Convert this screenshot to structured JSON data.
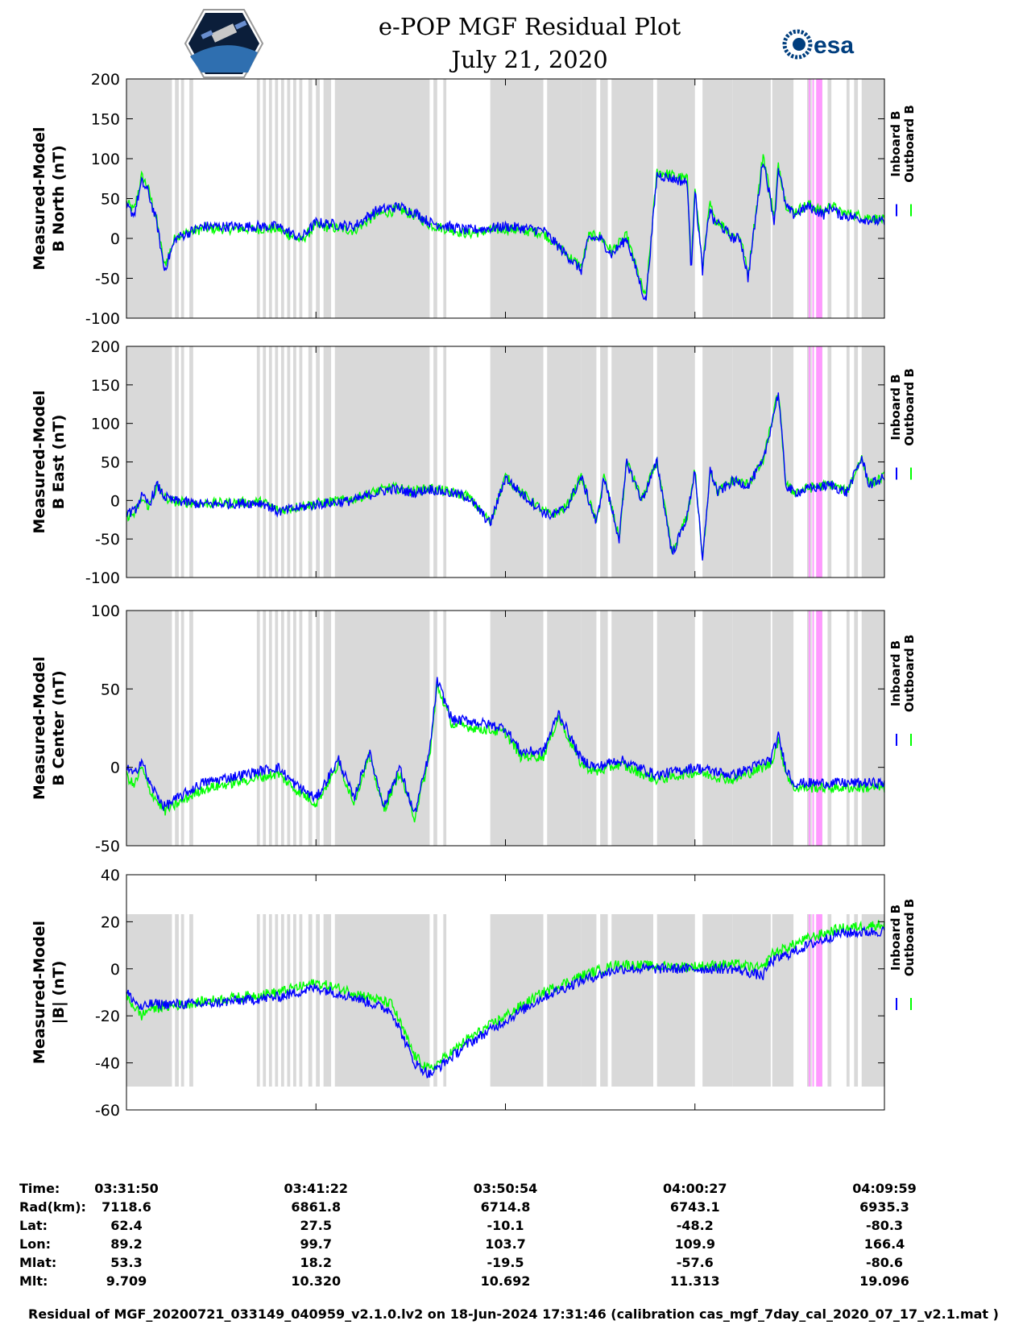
{
  "title": {
    "line1": "e-POP MGF Residual Plot",
    "line2": "July 21, 2020"
  },
  "logos": {
    "left": "cassiope-mission-logo",
    "right": "esa-logo",
    "right_text": "esa"
  },
  "colors": {
    "inboard": "#0000ff",
    "outboard": "#00ff00",
    "shade": "#d9d9d9",
    "highlight": "#ff99ff"
  },
  "chart_data": [
    {
      "type": "line",
      "id": "north",
      "ylabel": [
        "Measured-Model",
        "B North (nT)"
      ],
      "ylim": [
        -100,
        200
      ],
      "yticks": [
        -100,
        -50,
        0,
        50,
        100,
        150,
        200
      ],
      "legend": [
        "Inboard B",
        "Outboard B"
      ],
      "series": [
        {
          "name": "Inboard B",
          "x": [
            0.0,
            0.01,
            0.02,
            0.028,
            0.04,
            0.05,
            0.065,
            0.1,
            0.2,
            0.23,
            0.25,
            0.3,
            0.33,
            0.36,
            0.385,
            0.4,
            0.45,
            0.5,
            0.55,
            0.6,
            0.61,
            0.625,
            0.64,
            0.66,
            0.685,
            0.7,
            0.74,
            0.745,
            0.75,
            0.76,
            0.77,
            0.775,
            0.78,
            0.8,
            0.81,
            0.82,
            0.84,
            0.855,
            0.86,
            0.87,
            0.88,
            0.9,
            0.92,
            0.93,
            0.94,
            1.0
          ],
          "y": [
            40,
            30,
            70,
            60,
            20,
            -40,
            0,
            15,
            15,
            0,
            20,
            15,
            35,
            40,
            30,
            20,
            10,
            15,
            10,
            -40,
            0,
            0,
            -20,
            0,
            -80,
            80,
            70,
            -40,
            60,
            -40,
            40,
            20,
            20,
            0,
            0,
            -50,
            100,
            20,
            90,
            40,
            30,
            40,
            30,
            40,
            30,
            20
          ]
        },
        {
          "name": "Outboard B",
          "x": [
            0.0,
            0.01,
            0.02,
            0.028,
            0.04,
            0.05,
            0.065,
            0.1,
            0.2,
            0.23,
            0.25,
            0.3,
            0.33,
            0.36,
            0.385,
            0.4,
            0.45,
            0.5,
            0.55,
            0.6,
            0.61,
            0.625,
            0.64,
            0.66,
            0.685,
            0.7,
            0.74,
            0.745,
            0.75,
            0.76,
            0.77,
            0.775,
            0.78,
            0.8,
            0.81,
            0.82,
            0.84,
            0.855,
            0.86,
            0.87,
            0.88,
            0.9,
            0.92,
            0.93,
            0.94,
            1.0
          ],
          "y": [
            45,
            35,
            78,
            65,
            22,
            -35,
            3,
            12,
            12,
            -3,
            16,
            10,
            30,
            36,
            27,
            17,
            6,
            12,
            7,
            -36,
            3,
            3,
            -16,
            3,
            -76,
            84,
            74,
            -36,
            64,
            -36,
            44,
            24,
            23,
            3,
            3,
            -46,
            106,
            24,
            95,
            43,
            33,
            43,
            33,
            43,
            33,
            23
          ]
        }
      ]
    },
    {
      "type": "line",
      "id": "east",
      "ylabel": [
        "Measured-Model",
        "B East (nT)"
      ],
      "ylim": [
        -100,
        200
      ],
      "yticks": [
        -100,
        -50,
        0,
        50,
        100,
        150,
        200
      ],
      "legend": [
        "Inboard B",
        "Outboard B"
      ],
      "series": [
        {
          "name": "Inboard B",
          "x": [
            0.0,
            0.01,
            0.02,
            0.03,
            0.04,
            0.05,
            0.06,
            0.1,
            0.18,
            0.2,
            0.25,
            0.3,
            0.33,
            0.35,
            0.38,
            0.4,
            0.45,
            0.48,
            0.5,
            0.52,
            0.55,
            0.56,
            0.58,
            0.6,
            0.62,
            0.63,
            0.65,
            0.66,
            0.68,
            0.7,
            0.72,
            0.74,
            0.75,
            0.76,
            0.77,
            0.78,
            0.8,
            0.82,
            0.84,
            0.86,
            0.87,
            0.88,
            0.9,
            0.93,
            0.95,
            0.97,
            0.98,
            1.0
          ],
          "y": [
            -15,
            -15,
            5,
            -5,
            20,
            5,
            0,
            -5,
            -3,
            -15,
            -5,
            0,
            10,
            15,
            10,
            15,
            5,
            -30,
            30,
            10,
            -15,
            -20,
            -10,
            30,
            -30,
            30,
            -50,
            50,
            0,
            50,
            -70,
            -20,
            40,
            -80,
            40,
            10,
            25,
            20,
            50,
            140,
            20,
            10,
            15,
            20,
            10,
            55,
            20,
            30
          ]
        },
        {
          "name": "Outboard B",
          "x": [
            0.0,
            0.01,
            0.02,
            0.03,
            0.04,
            0.05,
            0.06,
            0.1,
            0.18,
            0.2,
            0.25,
            0.3,
            0.33,
            0.35,
            0.38,
            0.4,
            0.45,
            0.48,
            0.5,
            0.52,
            0.55,
            0.56,
            0.58,
            0.6,
            0.62,
            0.63,
            0.65,
            0.66,
            0.68,
            0.7,
            0.72,
            0.74,
            0.75,
            0.76,
            0.77,
            0.78,
            0.8,
            0.82,
            0.84,
            0.86,
            0.87,
            0.88,
            0.9,
            0.93,
            0.95,
            0.97,
            0.98,
            1.0
          ],
          "y": [
            -20,
            -18,
            2,
            -8,
            18,
            4,
            -1,
            -4,
            -2,
            -13,
            -4,
            2,
            12,
            17,
            12,
            16,
            6,
            -28,
            31,
            11,
            -14,
            -19,
            -9,
            31,
            -29,
            31,
            -49,
            51,
            1,
            51,
            -69,
            -19,
            41,
            -79,
            41,
            11,
            26,
            21,
            51,
            141,
            21,
            11,
            16,
            21,
            11,
            56,
            21,
            31
          ]
        }
      ]
    },
    {
      "type": "line",
      "id": "center",
      "ylabel": [
        "Measured-Model",
        "B Center (nT)"
      ],
      "ylim": [
        -50,
        100
      ],
      "yticks": [
        -50,
        0,
        50,
        100
      ],
      "legend": [
        "Inboard B",
        "Outboard B"
      ],
      "series": [
        {
          "name": "Inboard B",
          "x": [
            0.0,
            0.01,
            0.02,
            0.03,
            0.05,
            0.1,
            0.15,
            0.2,
            0.22,
            0.25,
            0.28,
            0.3,
            0.32,
            0.34,
            0.36,
            0.38,
            0.4,
            0.41,
            0.43,
            0.45,
            0.5,
            0.52,
            0.55,
            0.57,
            0.6,
            0.62,
            0.65,
            0.7,
            0.75,
            0.8,
            0.85,
            0.86,
            0.87,
            0.88,
            0.9,
            0.95,
            1.0
          ],
          "y": [
            0,
            -5,
            5,
            -10,
            -25,
            -10,
            -5,
            0,
            -10,
            -20,
            5,
            -20,
            10,
            -25,
            0,
            -30,
            10,
            55,
            30,
            30,
            25,
            10,
            10,
            35,
            5,
            0,
            5,
            -5,
            0,
            -5,
            5,
            20,
            0,
            -10,
            -10,
            -10,
            -10
          ]
        },
        {
          "name": "Outboard B",
          "x": [
            0.0,
            0.01,
            0.02,
            0.03,
            0.05,
            0.1,
            0.15,
            0.2,
            0.22,
            0.25,
            0.28,
            0.3,
            0.32,
            0.34,
            0.36,
            0.38,
            0.4,
            0.41,
            0.43,
            0.45,
            0.5,
            0.52,
            0.55,
            0.57,
            0.6,
            0.62,
            0.65,
            0.7,
            0.75,
            0.8,
            0.85,
            0.86,
            0.87,
            0.88,
            0.9,
            0.95,
            1.0
          ],
          "y": [
            -5,
            -12,
            0,
            -14,
            -28,
            -14,
            -9,
            -4,
            -13,
            -23,
            2,
            -22,
            7,
            -27,
            -3,
            -32,
            7,
            52,
            27,
            26,
            22,
            7,
            7,
            32,
            2,
            -3,
            2,
            -8,
            -3,
            -8,
            2,
            17,
            -3,
            -13,
            -13,
            -13,
            -13
          ]
        }
      ]
    },
    {
      "type": "line",
      "id": "magnitude",
      "ylabel": [
        "Measured-Model",
        "|B| (nT)"
      ],
      "ylim": [
        -60,
        40
      ],
      "yticks": [
        -60,
        -40,
        -20,
        0,
        20,
        40
      ],
      "legend": [
        "Inboard B",
        "Outboard B"
      ],
      "series": [
        {
          "name": "Inboard B",
          "x": [
            0.0,
            0.02,
            0.03,
            0.1,
            0.2,
            0.25,
            0.3,
            0.35,
            0.38,
            0.4,
            0.45,
            0.5,
            0.55,
            0.6,
            0.65,
            0.7,
            0.75,
            0.8,
            0.84,
            0.85,
            0.9,
            0.94,
            1.0
          ],
          "y": [
            -10,
            -17,
            -15,
            -15,
            -12,
            -8,
            -12,
            -18,
            -40,
            -45,
            -32,
            -22,
            -12,
            -5,
            0,
            0,
            0,
            0,
            -3,
            3,
            10,
            15,
            16
          ]
        },
        {
          "name": "Outboard B",
          "x": [
            0.0,
            0.02,
            0.03,
            0.1,
            0.2,
            0.25,
            0.3,
            0.35,
            0.38,
            0.4,
            0.45,
            0.5,
            0.55,
            0.6,
            0.65,
            0.7,
            0.75,
            0.8,
            0.84,
            0.85,
            0.9,
            0.94,
            1.0
          ],
          "y": [
            -12,
            -20,
            -17,
            -14,
            -10,
            -6,
            -10,
            -15,
            -37,
            -43,
            -30,
            -20,
            -10,
            -3,
            2,
            1,
            1,
            2,
            0,
            6,
            13,
            17,
            19
          ]
        }
      ]
    }
  ],
  "info_table": {
    "labels": [
      "Time:",
      "Rad(km):",
      "Lat:",
      "Lon:",
      "Mlat:",
      "Mlt:"
    ],
    "columns": [
      [
        "03:31:50",
        "7118.6",
        "62.4",
        "89.2",
        "53.3",
        "9.709"
      ],
      [
        "03:41:22",
        "6861.8",
        "27.5",
        "99.7",
        "18.2",
        "10.320"
      ],
      [
        "03:50:54",
        "6714.8",
        "-10.1",
        "103.7",
        "-19.5",
        "10.692"
      ],
      [
        "04:00:27",
        "6743.1",
        "-48.2",
        "109.9",
        "-57.6",
        "11.313"
      ],
      [
        "04:09:59",
        "6935.3",
        "-80.3",
        "166.4",
        "-80.6",
        "19.096"
      ]
    ]
  },
  "footer": "Residual of MGF_20200721_033149_040959_v2.1.0.lv2 on 18-Jun-2024 17:31:46 (calibration cas_mgf_7day_cal_2020_07_17_v2.1.mat )"
}
